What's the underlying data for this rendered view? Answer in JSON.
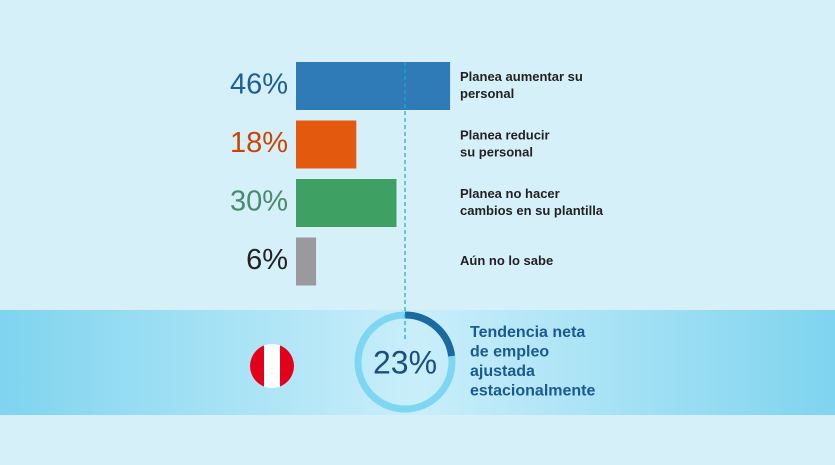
{
  "chart_data": {
    "type": "bar",
    "orientation": "horizontal",
    "categories": [
      [
        "Planea aumentar su",
        "personal"
      ],
      [
        "Planea reducir",
        "su personal"
      ],
      [
        "Planea no hacer",
        "cambios en su plantilla"
      ],
      [
        "Aún no lo sabe"
      ]
    ],
    "values": [
      46,
      18,
      30,
      6
    ],
    "value_labels": [
      "46%",
      "18%",
      "30%",
      "6%"
    ],
    "colors": [
      "#2e7bb8",
      "#e35a0f",
      "#3ea163",
      "#9a9a9e"
    ],
    "label_colors": [
      "#1e5f96",
      "#cc4400",
      "#4a8a6e",
      "#222222"
    ],
    "net_employment": {
      "value": 23,
      "value_label": "23%",
      "color": "#1a6aa0",
      "track_color": "#7fd6f2",
      "label": [
        "Tendencia neta",
        "de empleo",
        "ajustada",
        "estacionalmente"
      ]
    }
  }
}
